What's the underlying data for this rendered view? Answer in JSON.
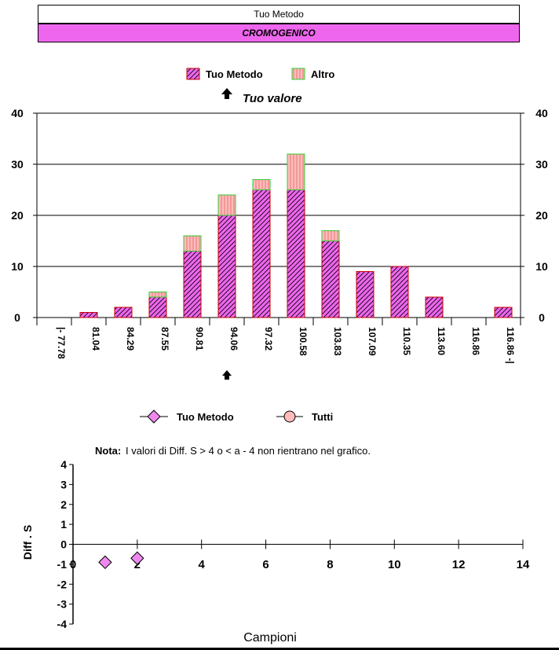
{
  "header": {
    "title": "Tuo Metodo",
    "method": "CROMOGENICO"
  },
  "colors": {
    "method_fill": "#ee66ee",
    "tuo_bar": "#ee66ee",
    "tuo_border": "#cc0000",
    "altro_bar": "#ffbbbb",
    "altro_border": "#33cc33",
    "diamond": "#ee88ee"
  },
  "chart_data": [
    {
      "type": "bar",
      "stacked": true,
      "legend": [
        {
          "name": "Tuo Metodo",
          "style": "diagonal-hatch"
        },
        {
          "name": "Altro",
          "style": "vertical-hatch"
        }
      ],
      "your_value_label": "Tuo valore",
      "your_value_category_index": 5,
      "categories": [
        "|- 77.78",
        "81.04",
        "84.29",
        "87.55",
        "90.81",
        "94.06",
        "97.32",
        "100.58",
        "103.83",
        "107.09",
        "110.35",
        "113.60",
        "116.86",
        "116.86 -|"
      ],
      "series": [
        {
          "name": "Tuo Metodo",
          "values": [
            0,
            1,
            2,
            4,
            13,
            20,
            25,
            25,
            15,
            9,
            10,
            4,
            0,
            2
          ]
        },
        {
          "name": "Altro",
          "values": [
            0,
            0,
            0,
            1,
            3,
            4,
            2,
            7,
            2,
            0,
            0,
            0,
            0,
            0
          ]
        }
      ],
      "ylim": [
        0,
        40
      ],
      "yticks": [
        "0",
        "10",
        "20",
        "30",
        "40"
      ],
      "grid": true
    },
    {
      "type": "scatter",
      "legend": [
        {
          "name": "Tuo Metodo",
          "marker": "diamond"
        },
        {
          "name": "Tutti",
          "marker": "circle"
        }
      ],
      "note_label": "Nota:",
      "note_text": "I valori di Diff. S > 4 o < a - 4 non rientrano nel grafico.",
      "xlabel": "Campioni",
      "ylabel": "Diff . S",
      "xlim": [
        0,
        14
      ],
      "ylim": [
        -4,
        4
      ],
      "xticks": [
        "0",
        "2",
        "4",
        "6",
        "8",
        "10",
        "12",
        "14"
      ],
      "yticks": [
        "4",
        "3",
        "2",
        "1",
        "0",
        "-1",
        "-2",
        "-3",
        "-4"
      ],
      "series": [
        {
          "name": "Tuo Metodo",
          "x": [
            1,
            2
          ],
          "y": [
            -0.9,
            -0.7
          ]
        }
      ]
    }
  ]
}
